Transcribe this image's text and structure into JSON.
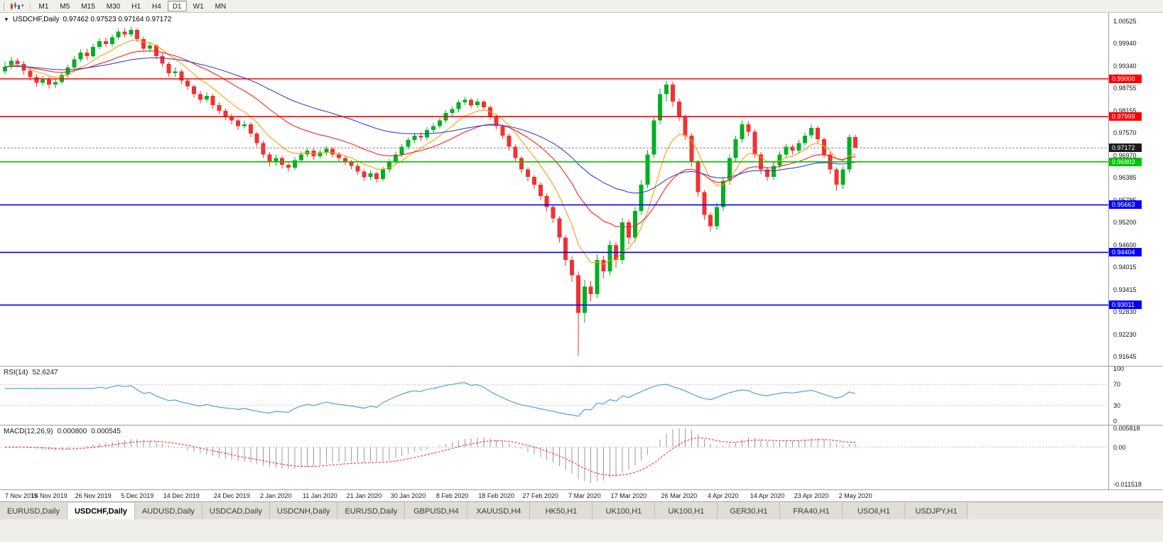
{
  "icons": {
    "collapse": "▼",
    "caret": "▾"
  },
  "toolbar": {
    "timeframes": [
      {
        "label": "M1",
        "active": false
      },
      {
        "label": "M5",
        "active": false
      },
      {
        "label": "M15",
        "active": false
      },
      {
        "label": "M30",
        "active": false
      },
      {
        "label": "H1",
        "active": false
      },
      {
        "label": "H4",
        "active": false
      },
      {
        "label": "D1",
        "active": true
      },
      {
        "label": "W1",
        "active": false
      },
      {
        "label": "MN",
        "active": false
      }
    ]
  },
  "chart": {
    "symbol": "USDCHF,Daily",
    "ohlc_text": "0.97462 0.97523 0.97164 0.97172"
  },
  "chart_data": {
    "type": "candlestick",
    "symbol": "USDCHF",
    "period": "Daily",
    "price_range": {
      "min": 0.914,
      "max": 1.0075
    },
    "y_ticks": [
      "1.00525",
      "0.99940",
      "0.99340",
      "0.98755",
      "0.98155",
      "0.97570",
      "0.96970",
      "0.96385",
      "0.95785",
      "0.95200",
      "0.94600",
      "0.94015",
      "0.93415",
      "0.92830",
      "0.92230",
      "0.91645"
    ],
    "x_labels": [
      "7 Nov 2019",
      "16 Nov 2019",
      "26 Nov 2019",
      "5 Dec 2019",
      "14 Dec 2019",
      "24 Dec 2019",
      "2 Jan 2020",
      "11 Jan 2020",
      "21 Jan 2020",
      "30 Jan 2020",
      "8 Feb 2020",
      "18 Feb 2020",
      "27 Feb 2020",
      "7 Mar 2020",
      "17 Mar 2020",
      "26 Mar 2020",
      "4 Apr 2020",
      "14 Apr 2020",
      "23 Apr 2020",
      "2 May 2020"
    ],
    "hlines": [
      {
        "value": 0.99,
        "label": "0.99000",
        "color": "#ff0000"
      },
      {
        "value": 0.97999,
        "label": "0.97999",
        "color": "#ff0000"
      },
      {
        "value": 0.96803,
        "label": "0.96803",
        "color": "#00c400"
      },
      {
        "value": 0.95663,
        "label": "0.95663",
        "color": "#0000ff"
      },
      {
        "value": 0.94404,
        "label": "0.94404",
        "color": "#0000ff"
      },
      {
        "value": 0.93011,
        "label": "0.93011",
        "color": "#0000ff"
      }
    ],
    "current_price": {
      "value": 0.97172,
      "label": "0.97172"
    },
    "moving_averages": [
      {
        "name": "fast-ma",
        "period": 8,
        "color": "#ff9d00"
      },
      {
        "name": "medium-ma",
        "period": 21,
        "color": "#ff1f1f"
      },
      {
        "name": "slow-ma",
        "period": 45,
        "color": "#3347cf"
      }
    ],
    "colors": {
      "up": "#00b022",
      "down": "#f23131",
      "current_line": "#888888"
    },
    "candles": [
      [
        0.992,
        0.9945,
        0.9912,
        0.9932
      ],
      [
        0.9932,
        0.9958,
        0.9925,
        0.9948
      ],
      [
        0.9948,
        0.9955,
        0.993,
        0.994
      ],
      [
        0.994,
        0.9947,
        0.991,
        0.9922
      ],
      [
        0.9922,
        0.993,
        0.9895,
        0.9905
      ],
      [
        0.9905,
        0.9912,
        0.9878,
        0.989
      ],
      [
        0.989,
        0.9908,
        0.9882,
        0.9898
      ],
      [
        0.9898,
        0.9905,
        0.9875,
        0.9885
      ],
      [
        0.9885,
        0.99,
        0.9876,
        0.9892
      ],
      [
        0.9892,
        0.9918,
        0.9885,
        0.991
      ],
      [
        0.991,
        0.9938,
        0.9903,
        0.993
      ],
      [
        0.993,
        0.996,
        0.9924,
        0.9952
      ],
      [
        0.9952,
        0.9978,
        0.9945,
        0.997
      ],
      [
        0.997,
        0.998,
        0.995,
        0.996
      ],
      [
        0.996,
        0.9993,
        0.9955,
        0.9985
      ],
      [
        0.9985,
        1.0008,
        0.9978,
        1.0
      ],
      [
        1.0,
        1.001,
        0.9984,
        0.9992
      ],
      [
        0.9992,
        1.0018,
        0.9986,
        1.001
      ],
      [
        1.001,
        1.0033,
        1.0004,
        1.0025
      ],
      [
        1.0025,
        1.0035,
        1.001,
        1.0018
      ],
      [
        1.0018,
        1.0038,
        1.0012,
        1.003
      ],
      [
        1.003,
        1.0035,
        0.9998,
        1.0005
      ],
      [
        1.0005,
        1.0012,
        0.9972,
        0.998
      ],
      [
        0.998,
        0.9998,
        0.997,
        0.9988
      ],
      [
        0.9988,
        0.9992,
        0.9952,
        0.996
      ],
      [
        0.996,
        0.9968,
        0.9932,
        0.994
      ],
      [
        0.994,
        0.9945,
        0.9906,
        0.9915
      ],
      [
        0.9915,
        0.993,
        0.9905,
        0.992
      ],
      [
        0.992,
        0.9925,
        0.9886,
        0.9895
      ],
      [
        0.9895,
        0.9902,
        0.987,
        0.988
      ],
      [
        0.988,
        0.9885,
        0.985,
        0.986
      ],
      [
        0.986,
        0.9868,
        0.9835,
        0.9845
      ],
      [
        0.9845,
        0.9865,
        0.9838,
        0.9855
      ],
      [
        0.9855,
        0.986,
        0.982,
        0.983
      ],
      [
        0.983,
        0.9838,
        0.9806,
        0.9815
      ],
      [
        0.9815,
        0.9822,
        0.979,
        0.98
      ],
      [
        0.98,
        0.9808,
        0.978,
        0.979
      ],
      [
        0.979,
        0.9796,
        0.9765,
        0.9775
      ],
      [
        0.9775,
        0.979,
        0.9768,
        0.978
      ],
      [
        0.978,
        0.9785,
        0.9745,
        0.9755
      ],
      [
        0.9755,
        0.976,
        0.972,
        0.973
      ],
      [
        0.973,
        0.9736,
        0.969,
        0.97
      ],
      [
        0.97,
        0.9706,
        0.9668,
        0.968
      ],
      [
        0.968,
        0.97,
        0.967,
        0.969
      ],
      [
        0.969,
        0.9696,
        0.9662,
        0.9672
      ],
      [
        0.9672,
        0.968,
        0.9655,
        0.9665
      ],
      [
        0.9665,
        0.9693,
        0.9658,
        0.9685
      ],
      [
        0.9685,
        0.9708,
        0.9678,
        0.97
      ],
      [
        0.97,
        0.9718,
        0.9692,
        0.971
      ],
      [
        0.971,
        0.9716,
        0.9686,
        0.9695
      ],
      [
        0.9695,
        0.9713,
        0.9688,
        0.9705
      ],
      [
        0.9705,
        0.9722,
        0.9698,
        0.9715
      ],
      [
        0.9715,
        0.972,
        0.9692,
        0.97
      ],
      [
        0.97,
        0.9706,
        0.9681,
        0.969
      ],
      [
        0.969,
        0.9696,
        0.9671,
        0.968
      ],
      [
        0.968,
        0.9686,
        0.966,
        0.967
      ],
      [
        0.967,
        0.9676,
        0.9646,
        0.9655
      ],
      [
        0.9655,
        0.966,
        0.963,
        0.964
      ],
      [
        0.964,
        0.9658,
        0.9632,
        0.965
      ],
      [
        0.965,
        0.9655,
        0.9625,
        0.9635
      ],
      [
        0.9635,
        0.9668,
        0.9628,
        0.966
      ],
      [
        0.966,
        0.9688,
        0.9652,
        0.968
      ],
      [
        0.968,
        0.9707,
        0.9672,
        0.97
      ],
      [
        0.97,
        0.9727,
        0.9693,
        0.972
      ],
      [
        0.972,
        0.9745,
        0.9713,
        0.9738
      ],
      [
        0.9738,
        0.9757,
        0.973,
        0.975
      ],
      [
        0.975,
        0.976,
        0.9736,
        0.9745
      ],
      [
        0.9745,
        0.9772,
        0.9738,
        0.9765
      ],
      [
        0.9765,
        0.9783,
        0.9757,
        0.9775
      ],
      [
        0.9775,
        0.9797,
        0.9768,
        0.979
      ],
      [
        0.979,
        0.9817,
        0.9783,
        0.981
      ],
      [
        0.981,
        0.9828,
        0.9802,
        0.982
      ],
      [
        0.982,
        0.9845,
        0.9812,
        0.9838
      ],
      [
        0.9838,
        0.9853,
        0.983,
        0.9845
      ],
      [
        0.9845,
        0.985,
        0.9822,
        0.983
      ],
      [
        0.983,
        0.9848,
        0.9823,
        0.984
      ],
      [
        0.984,
        0.9845,
        0.9816,
        0.9825
      ],
      [
        0.9825,
        0.983,
        0.9792,
        0.98
      ],
      [
        0.98,
        0.9806,
        0.9766,
        0.9775
      ],
      [
        0.9775,
        0.978,
        0.974,
        0.975
      ],
      [
        0.975,
        0.9755,
        0.971,
        0.972
      ],
      [
        0.972,
        0.9726,
        0.968,
        0.969
      ],
      [
        0.969,
        0.9696,
        0.965,
        0.966
      ],
      [
        0.966,
        0.9666,
        0.9628,
        0.964
      ],
      [
        0.964,
        0.9645,
        0.9608,
        0.962
      ],
      [
        0.962,
        0.9626,
        0.9578,
        0.959
      ],
      [
        0.959,
        0.9596,
        0.9548,
        0.956
      ],
      [
        0.956,
        0.9566,
        0.9518,
        0.953
      ],
      [
        0.953,
        0.9536,
        0.9466,
        0.948
      ],
      [
        0.948,
        0.9486,
        0.9405,
        0.942
      ],
      [
        0.942,
        0.943,
        0.9362,
        0.938
      ],
      [
        0.938,
        0.939,
        0.9165,
        0.928
      ],
      [
        0.928,
        0.9368,
        0.9255,
        0.935
      ],
      [
        0.935,
        0.9365,
        0.931,
        0.933
      ],
      [
        0.933,
        0.9435,
        0.932,
        0.942
      ],
      [
        0.942,
        0.9432,
        0.9372,
        0.939
      ],
      [
        0.939,
        0.9472,
        0.938,
        0.946
      ],
      [
        0.946,
        0.9468,
        0.94,
        0.942
      ],
      [
        0.942,
        0.9532,
        0.941,
        0.952
      ],
      [
        0.952,
        0.9528,
        0.9462,
        0.948
      ],
      [
        0.948,
        0.956,
        0.9468,
        0.955
      ],
      [
        0.955,
        0.9632,
        0.954,
        0.962
      ],
      [
        0.962,
        0.9712,
        0.961,
        0.97
      ],
      [
        0.97,
        0.98,
        0.969,
        0.979
      ],
      [
        0.979,
        0.9875,
        0.978,
        0.986
      ],
      [
        0.986,
        0.9895,
        0.984,
        0.9885
      ],
      [
        0.9885,
        0.9893,
        0.9826,
        0.984
      ],
      [
        0.984,
        0.9848,
        0.9788,
        0.98
      ],
      [
        0.98,
        0.9806,
        0.9738,
        0.975
      ],
      [
        0.975,
        0.9756,
        0.9668,
        0.968
      ],
      [
        0.968,
        0.9686,
        0.9588,
        0.96
      ],
      [
        0.96,
        0.9606,
        0.9526,
        0.954
      ],
      [
        0.954,
        0.9546,
        0.9496,
        0.951
      ],
      [
        0.951,
        0.9572,
        0.95,
        0.956
      ],
      [
        0.956,
        0.964,
        0.955,
        0.963
      ],
      [
        0.963,
        0.97,
        0.962,
        0.969
      ],
      [
        0.969,
        0.975,
        0.968,
        0.974
      ],
      [
        0.974,
        0.979,
        0.973,
        0.978
      ],
      [
        0.978,
        0.9788,
        0.9748,
        0.976
      ],
      [
        0.976,
        0.9766,
        0.969,
        0.97
      ],
      [
        0.97,
        0.9706,
        0.9648,
        0.966
      ],
      [
        0.966,
        0.9668,
        0.963,
        0.964
      ],
      [
        0.964,
        0.9678,
        0.9632,
        0.967
      ],
      [
        0.967,
        0.9708,
        0.9662,
        0.97
      ],
      [
        0.97,
        0.9728,
        0.9692,
        0.972
      ],
      [
        0.972,
        0.9726,
        0.97,
        0.971
      ],
      [
        0.971,
        0.9738,
        0.9702,
        0.973
      ],
      [
        0.973,
        0.9758,
        0.9722,
        0.975
      ],
      [
        0.975,
        0.978,
        0.9742,
        0.977
      ],
      [
        0.977,
        0.9776,
        0.973,
        0.974
      ],
      [
        0.974,
        0.9746,
        0.969,
        0.97
      ],
      [
        0.97,
        0.9706,
        0.9648,
        0.966
      ],
      [
        0.966,
        0.9666,
        0.9605,
        0.962
      ],
      [
        0.962,
        0.9668,
        0.9608,
        0.966
      ],
      [
        0.966,
        0.9752,
        0.9652,
        0.9746
      ],
      [
        0.97462,
        0.97523,
        0.97164,
        0.97172
      ]
    ]
  },
  "rsi": {
    "label": "RSI(14)",
    "value": "52.6247",
    "period": 14,
    "color": "#4fa3dc",
    "levels": [
      "100",
      "70",
      "30",
      "0"
    ]
  },
  "macd": {
    "label": "MACD(12,26,9)",
    "value_main": "0.000800",
    "value_signal": "0.000545",
    "fast": 12,
    "slow": 26,
    "signal": 9,
    "scale": [
      "0.005818",
      "0.00",
      "-0.011518"
    ],
    "histogram_color": "#9b9b9b",
    "signal_color": "#ff2020"
  },
  "tabs": [
    {
      "label": "EURUSD,Daily",
      "active": false
    },
    {
      "label": "USDCHF,Daily",
      "active": true
    },
    {
      "label": "AUDUSD,Daily",
      "active": false
    },
    {
      "label": "USDCAD,Daily",
      "active": false
    },
    {
      "label": "USDCNH,Daily",
      "active": false
    },
    {
      "label": "EURUSD,Daily",
      "active": false
    },
    {
      "label": "GBPUSD,H4",
      "active": false
    },
    {
      "label": "XAUUSD,H4",
      "active": false
    },
    {
      "label": "HK50,H1",
      "active": false
    },
    {
      "label": "UK100,H1",
      "active": false
    },
    {
      "label": "UK100,H1",
      "active": false
    },
    {
      "label": "GER30,H1",
      "active": false
    },
    {
      "label": "FRA40,H1",
      "active": false
    },
    {
      "label": "USOil,H1",
      "active": false
    },
    {
      "label": "USDJPY,H1",
      "active": false
    }
  ]
}
